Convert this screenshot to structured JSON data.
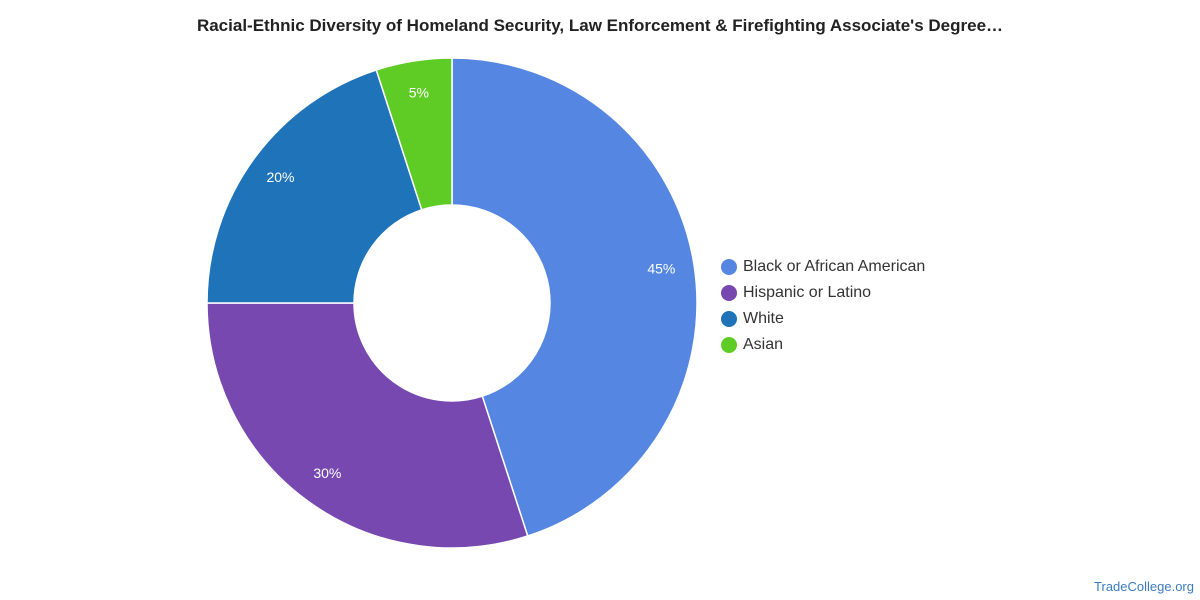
{
  "chart_data": {
    "type": "pie",
    "variant": "donut",
    "title": "Racial-Ethnic Diversity of Homeland Security, Law Enforcement & Firefighting Associate's Degree…",
    "slices": [
      {
        "label": "Black or African American",
        "value": 45,
        "value_label": "45%",
        "color": "#5486e2"
      },
      {
        "label": "Hispanic or Latino",
        "value": 30,
        "value_label": "30%",
        "color": "#7648b0"
      },
      {
        "label": "White",
        "value": 20,
        "value_label": "20%",
        "color": "#1e73b9"
      },
      {
        "label": "Asian",
        "value": 5,
        "value_label": "5%",
        "color": "#5fcc26"
      }
    ],
    "legend_position": "right"
  },
  "footer": {
    "credit": "TradeCollege.org"
  }
}
